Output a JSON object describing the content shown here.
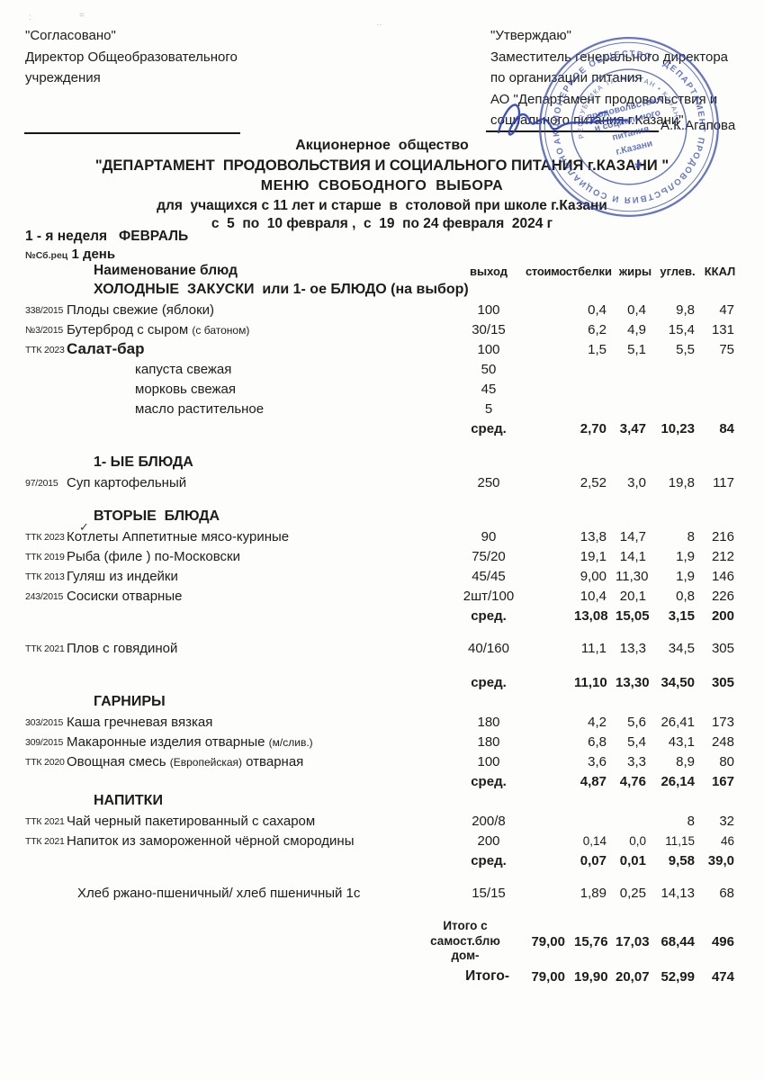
{
  "approvals": {
    "left": {
      "title": "\"Согласовано\"",
      "line1": "Директор Общеобразовательного",
      "line2": "учреждения"
    },
    "right": {
      "title": "\"Утверждаю\"",
      "line1": "Заместитель генерального директора",
      "line2": "по организации питания",
      "line3": "АО \"Департамент продовольствия и",
      "line4": "социального питания г.Казани\"",
      "signer": "А.К.Агапова"
    }
  },
  "title_block": {
    "line1": "Акционерное  общество",
    "line2": "\"ДЕПАРТАМЕНТ  ПРОДОВОЛЬСТВИЯ И СОЦИАЛЬНОГО ПИТАНИЯ г.КАЗАНИ \"",
    "line3": "МЕНЮ  СВОБОДНОГО  ВЫБОРА",
    "line4": "для  учащихся с 11 лет и старше  в  столовой при школе г.Казани",
    "line5": "с  5  по  10 февраля ,  с  19  по 24 февраля  2024 г"
  },
  "week_label": "1 - я неделя   ФЕВРАЛЬ",
  "day_prefix": "№Сб.рец",
  "day_label": "1 день",
  "table": {
    "headers": {
      "name": "Наименование  блюд",
      "out": "выход",
      "cost": "стоимост",
      "protein": "белки",
      "fat": "жиры",
      "carbs": "углев.",
      "kcal": "ККАЛ"
    },
    "rows": [
      {
        "t": "section",
        "name": "ХОЛОДНЫЕ  ЗАКУСКИ  или 1- ое БЛЮДО (на выбор)"
      },
      {
        "t": "item",
        "code": "338/2015",
        "name": "Плоды свежие (яблоки)",
        "out": "100",
        "prot": "0,4",
        "fat": "0,4",
        "carb": "9,8",
        "kcal": "47"
      },
      {
        "t": "item",
        "code": "№3/2015",
        "name": "Бутерброд с сыром ",
        "note": "(с батоном)",
        "out": "30/15",
        "prot": "6,2",
        "fat": "4,9",
        "carb": "15,4",
        "kcal": "131"
      },
      {
        "t": "item",
        "code": "ТТК 2023",
        "name": "Салат-бар",
        "big": true,
        "out": "100",
        "prot": "1,5",
        "fat": "5,1",
        "carb": "5,5",
        "kcal": "75"
      },
      {
        "t": "sub",
        "name": "капуста свежая",
        "out": "50"
      },
      {
        "t": "sub",
        "name": "морковь свежая",
        "out": "45"
      },
      {
        "t": "sub",
        "name": "масло растительное",
        "out": "5"
      },
      {
        "t": "avg",
        "label": "сред.",
        "prot": "2,70",
        "fat": "3,47",
        "carb": "10,23",
        "kcal": "84"
      },
      {
        "t": "gap",
        "h": 16
      },
      {
        "t": "section",
        "name": "1- ЫЕ БЛЮДА"
      },
      {
        "t": "item",
        "code": "97/2015",
        "name": "Суп картофельный",
        "out": "250",
        "prot": "2,52",
        "fat": "3,0",
        "carb": "19,8",
        "kcal": "117"
      },
      {
        "t": "gap",
        "h": 16
      },
      {
        "t": "section",
        "name": "ВТОРЫЕ  БЛЮДА",
        "check": "✓"
      },
      {
        "t": "item",
        "code": "ТТК 2023",
        "name": "Котлеты Аппетитные мясо-куриные",
        "out": "90",
        "prot": "13,8",
        "fat": "14,7",
        "carb": "8",
        "kcal": "216"
      },
      {
        "t": "item",
        "code": "ТТК 2019",
        "name": "Рыба (филе ) по-Московски",
        "out": "75/20",
        "prot": "19,1",
        "fat": "14,1",
        "carb": "1,9",
        "kcal": "212"
      },
      {
        "t": "item",
        "code": "ТТК 2013",
        "name": "Гуляш из индейки",
        "out": "45/45",
        "prot": "9,00",
        "fat": "11,30",
        "carb": "1,9",
        "kcal": "146"
      },
      {
        "t": "item",
        "code": "243/2015",
        "name": "Сосиски отварные",
        "out": "2шт/100",
        "prot": "10,4",
        "fat": "20,1",
        "carb": "0,8",
        "kcal": "226"
      },
      {
        "t": "avg",
        "label": "сред.",
        "prot": "13,08",
        "fat": "15,05",
        "carb": "3,15",
        "kcal": "200"
      },
      {
        "t": "gap",
        "h": 14
      },
      {
        "t": "item",
        "code": "ТТК 2021",
        "name": "Плов с говядиной",
        "out": "40/160",
        "prot": "11,1",
        "fat": "13,3",
        "carb": "34,5",
        "kcal": "305"
      },
      {
        "t": "gap",
        "h": 16
      },
      {
        "t": "avg",
        "label": "сред.",
        "prot": "11,10",
        "fat": "13,30",
        "carb": "34,50",
        "kcal": "305"
      },
      {
        "t": "section",
        "name": "ГАРНИРЫ"
      },
      {
        "t": "item",
        "code": "303/2015",
        "name": "Каша гречневая вязкая",
        "out": "180",
        "prot": "4,2",
        "fat": "5,6",
        "carb": "26,41",
        "kcal": "173"
      },
      {
        "t": "item",
        "code": "309/2015",
        "name": "Макаронные изделия отварные ",
        "note": "(м/слив.)",
        "out": "180",
        "prot": "6,8",
        "fat": "5,4",
        "carb": "43,1",
        "kcal": "248"
      },
      {
        "t": "item",
        "code": "ТТК 2020",
        "name": "Овощная смесь ",
        "note": "(Европейская)",
        "tail": " отварная",
        "out": "100",
        "prot": "3,6",
        "fat": "3,3",
        "carb": "8,9",
        "kcal": "80"
      },
      {
        "t": "avg",
        "label": "сред.",
        "prot": "4,87",
        "fat": "4,76",
        "carb": "26,14",
        "kcal": "167"
      },
      {
        "t": "section",
        "name": "НАПИТКИ"
      },
      {
        "t": "item",
        "code": "ТТК 2021",
        "name": "Чай черный пакетированный с сахаром",
        "out": "200/8",
        "prot": "",
        "fat": "",
        "carb": "8",
        "kcal": "32"
      },
      {
        "t": "item",
        "code": "ТТК 2021",
        "name": "Напиток  из замороженной чёрной смородины",
        "out": "200",
        "small": true,
        "prot": "0,14",
        "fat": "0,0",
        "carb": "11,15",
        "kcal": "46"
      },
      {
        "t": "avg",
        "label": "сред.",
        "prot": "0,07",
        "fat": "0,01",
        "carb": "9,58",
        "kcal": "39,0"
      },
      {
        "t": "gap",
        "h": 14
      },
      {
        "t": "item",
        "code": "",
        "bread": true,
        "name": "Хлеб ржано-пшеничный/ хлеб пшеничный 1с",
        "out": "15/15",
        "prot": "1,89",
        "fat": "0,25",
        "carb": "14,13",
        "kcal": "68"
      },
      {
        "t": "gap",
        "h": 16
      },
      {
        "t": "total",
        "lines": [
          "Итого с",
          "самост.блю",
          "дом-"
        ],
        "cost": "79,00",
        "prot": "15,76",
        "fat": "17,03",
        "carb": "68,44",
        "kcal": "496"
      },
      {
        "t": "total2",
        "label": "Итого-",
        "cost": "79,00",
        "prot": "19,90",
        "fat": "20,07",
        "carb": "52,99",
        "kcal": "474"
      }
    ]
  },
  "stamp": {
    "ring_text": "АКЦИОНЕРНОЕ ОБЩЕСТВО • ДЕПАРТАМЕНТ ПРОДОВОЛЬСТВИЯ И СОЦИАЛЬНОГО ПИТАНИЯ г.КАЗАНИ •",
    "ring_text_inner": "РЕСПУБЛИКА ТАТАРСТАН • КАЗАНЬ •",
    "center_line1": "продовольствия",
    "center_line2": "и социального",
    "center_line3": "питания",
    "center_line4": "г.Казани"
  },
  "colors": {
    "ink": "#1c1c1c",
    "stamp_blue": "#3d51b5",
    "signature_blue": "#2b3fb8"
  }
}
